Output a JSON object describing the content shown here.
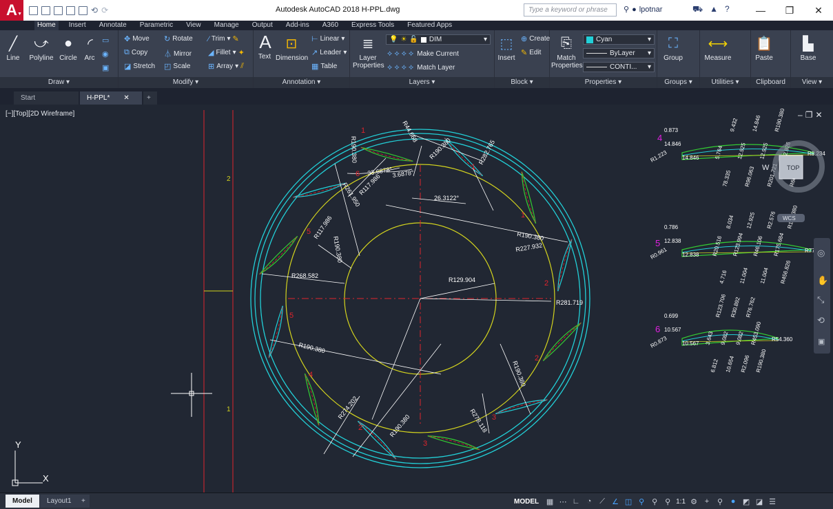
{
  "app": {
    "title": "Autodesk AutoCAD 2018  H-PPL.dwg",
    "search_placeholder": "Type a keyword or phrase",
    "user": "lpotnar"
  },
  "ribbon_tabs": [
    "Home",
    "Insert",
    "Annotate",
    "Parametric",
    "View",
    "Manage",
    "Output",
    "Add-ins",
    "A360",
    "Express Tools",
    "Featured Apps"
  ],
  "ribbon": {
    "draw": {
      "title": "Draw",
      "line": "Line",
      "polyline": "Polyline",
      "circle": "Circle",
      "arc": "Arc"
    },
    "modify": {
      "title": "Modify",
      "move": "Move",
      "rotate": "Rotate",
      "trim": "Trim",
      "copy": "Copy",
      "mirror": "Mirror",
      "fillet": "Fillet",
      "stretch": "Stretch",
      "scale": "Scale",
      "array": "Array"
    },
    "annotation": {
      "title": "Annotation",
      "text": "Text",
      "dimension": "Dimension",
      "linear": "Linear",
      "leader": "Leader",
      "table": "Table"
    },
    "layers": {
      "title": "Layers",
      "layer_properties_1": "Layer",
      "layer_properties_2": "Properties",
      "layer_name": "DIM",
      "make_current": "Make Current",
      "match_layer": "Match Layer"
    },
    "block": {
      "title": "Block",
      "insert": "Insert",
      "create": "Create",
      "edit": "Edit"
    },
    "properties": {
      "title": "Properties",
      "match_properties_1": "Match",
      "match_properties_2": "Properties",
      "color": "Cyan",
      "lineweight": "ByLayer",
      "linetype": "CONTI..."
    },
    "groups": {
      "title": "Groups",
      "group": "Group"
    },
    "utilities": {
      "title": "Utilities",
      "measure": "Measure"
    },
    "clipboard": {
      "title": "Clipboard",
      "paste": "Paste"
    },
    "view": {
      "title": "View",
      "base": "Base"
    }
  },
  "file_tabs": {
    "start": "Start",
    "current": "H-PPL*"
  },
  "viewport": {
    "label": "[−][Top][2D Wireframe]",
    "viewcube_top": "TOP",
    "viewcube_w": "W",
    "wcs": "WCS",
    "ucs_x": "X",
    "ucs_y": "Y"
  },
  "drawing": {
    "colors": {
      "background": "#212733",
      "cyan": "#22d0d8",
      "yellow": "#d4d41e",
      "red": "#e0242c",
      "green": "#33cc33",
      "white": "#ffffff",
      "magenta": "#e020e0"
    },
    "main_labels": {
      "r268": "R268.582",
      "r281": "R281.719",
      "r129": "R129.904",
      "r190a": "R190.380",
      "r227": "R227.932",
      "r190b": "R190.380",
      "r190c": "R190.380",
      "r190d": "R190.380",
      "r274": "R274.202",
      "r278": "R278.118",
      "r190e": "R190.380",
      "r44": "R44.668",
      "r190f": "R190.380",
      "r282": "R282.765",
      "r117": "R117.986",
      "a33": "33.6878°",
      "a3": "3.6878°",
      "a26": "26.3122°",
      "r261": "R261.950",
      "r117b": "R117.986",
      "r190g": "R190.380",
      "r190h": "R190.380"
    },
    "blade_numbers": [
      "1",
      "2",
      "2",
      "3",
      "3",
      "4",
      "5",
      "5",
      "6",
      "1",
      "2",
      "1"
    ],
    "section_labels": [
      "4",
      "5",
      "6"
    ],
    "detail4": {
      "d1": "0.873",
      "d2": "14.846",
      "d3": "14.846",
      "d4": "R1.223",
      "d5": "5.764",
      "d6": "78.335",
      "d7": "9.432",
      "d8": "12.925",
      "d9": "R96.063",
      "d10": "14.846",
      "d11": "12.925",
      "d12": "R201.721",
      "d13": "R190.380",
      "d14": "R2.926",
      "d15": "R60.204",
      "d16": "R8.234"
    },
    "detail5": {
      "d1": "0.786",
      "d2": "12.838",
      "d3": "12.838",
      "d4": "R0.961",
      "d5": "R20.516",
      "d6": "4.716",
      "d7": "8.034",
      "d8": "R123.994",
      "d9": "11.004",
      "d10": "12.925",
      "d11": "R46.106",
      "d12": "11.004",
      "d13": "R2.576",
      "d14": "R175.684",
      "d15": "R456.826",
      "d16": "R190.380",
      "d17": "R77.905"
    },
    "detail6": {
      "d1": "0.699",
      "d2": "10.567",
      "d3": "10.567",
      "d4": "R0.873",
      "d5": "3.643",
      "d6": "6.812",
      "d7": "R123.706",
      "d8": "9.082",
      "d9": "10.654",
      "d10": "R30.892",
      "d11": "9.082",
      "d12": "R2.096",
      "d13": "R76.762",
      "d14": "R453.090",
      "d15": "R190.380",
      "d16": "R54.360"
    },
    "axis_numbers": [
      "2",
      "1"
    ]
  },
  "status": {
    "model_tab": "Model",
    "layout_tab": "Layout1",
    "model": "MODEL",
    "scale": "1:1"
  }
}
